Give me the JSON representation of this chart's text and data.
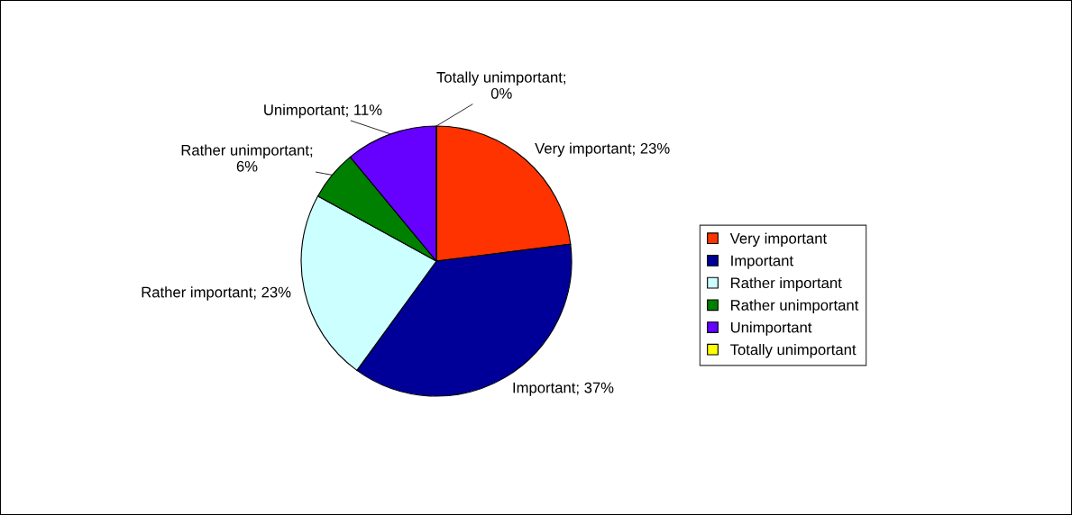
{
  "chart_data": {
    "type": "pie",
    "categories": [
      "Very important",
      "Important",
      "Rather important",
      "Rather unimportant",
      "Unimportant",
      "Totally unimportant"
    ],
    "values": [
      23,
      37,
      23,
      6,
      11,
      0
    ],
    "colors": [
      "#ff3300",
      "#000099",
      "#ccffff",
      "#008000",
      "#6600ff",
      "#ffff00"
    ],
    "value_labels": [
      "Very important; 23%",
      "Important; 37%",
      "Rather important; 23%",
      "Rather unimportant;\n6%",
      "Unimportant; 11%",
      "Totally unimportant;\n0%"
    ],
    "legend": "right"
  }
}
